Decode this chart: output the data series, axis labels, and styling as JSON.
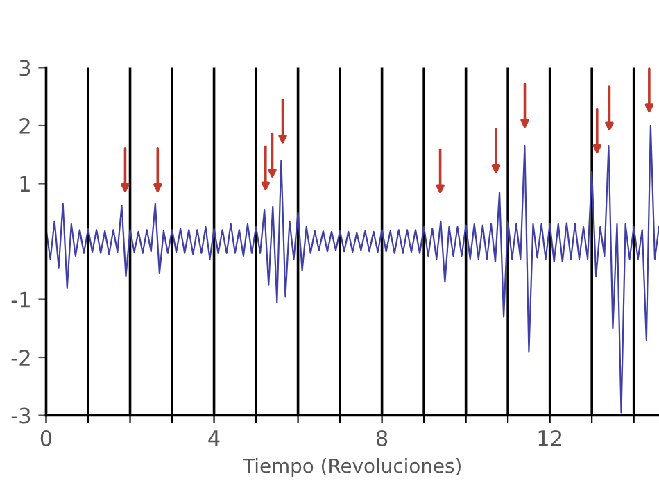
{
  "chart_data": {
    "type": "line",
    "xlabel": "Tiempo (Revoluciones)",
    "xlim": [
      0,
      14.6
    ],
    "ylim": [
      -3,
      3
    ],
    "xticks": [
      0,
      {
        "value": 1,
        "label": null
      },
      {
        "value": 2,
        "label": null
      },
      {
        "value": 3,
        "label": null
      },
      4,
      {
        "value": 5,
        "label": null
      },
      {
        "value": 6,
        "label": null
      },
      {
        "value": 7,
        "label": null
      },
      8,
      {
        "value": 9,
        "label": null
      },
      {
        "value": 10,
        "label": null
      },
      {
        "value": 11,
        "label": null
      },
      12,
      {
        "value": 13,
        "label": null
      },
      {
        "value": 14,
        "label": null
      }
    ],
    "yticks": [
      -3,
      -2,
      -1,
      1,
      2,
      3
    ],
    "grid": false,
    "legend": false,
    "marker": "none",
    "line_style": "solid",
    "ref_lines": [
      {
        "axis": "x",
        "value": 1,
        "color": "#000000"
      },
      {
        "axis": "x",
        "value": 2,
        "color": "#000000"
      },
      {
        "axis": "x",
        "value": 3,
        "color": "#000000"
      },
      {
        "axis": "x",
        "value": 4,
        "color": "#000000"
      },
      {
        "axis": "x",
        "value": 5,
        "color": "#000000"
      },
      {
        "axis": "x",
        "value": 6,
        "color": "#000000"
      },
      {
        "axis": "x",
        "value": 7,
        "color": "#000000"
      },
      {
        "axis": "x",
        "value": 8,
        "color": "#000000"
      },
      {
        "axis": "x",
        "value": 9,
        "color": "#000000"
      },
      {
        "axis": "x",
        "value": 10,
        "color": "#000000"
      },
      {
        "axis": "x",
        "value": 11,
        "color": "#000000"
      },
      {
        "axis": "x",
        "value": 12,
        "color": "#000000"
      },
      {
        "axis": "x",
        "value": 13,
        "color": "#000000"
      },
      {
        "axis": "x",
        "value": 14,
        "color": "#000000"
      }
    ],
    "series": [
      {
        "color": "#3f3fa6",
        "x": [
          0.0,
          0.1,
          0.2,
          0.3,
          0.4,
          0.5,
          0.6,
          0.7,
          0.8,
          0.9,
          1.0,
          1.1,
          1.2,
          1.3,
          1.4,
          1.5,
          1.6,
          1.7,
          1.8,
          1.9,
          2.0,
          2.1,
          2.2,
          2.3,
          2.4,
          2.5,
          2.6,
          2.7,
          2.8,
          2.9,
          3.0,
          3.1,
          3.2,
          3.3,
          3.4,
          3.5,
          3.6,
          3.7,
          3.8,
          3.9,
          4.0,
          4.1,
          4.2,
          4.3,
          4.4,
          4.5,
          4.6,
          4.7,
          4.8,
          4.9,
          5.0,
          5.1,
          5.2,
          5.3,
          5.4,
          5.5,
          5.6,
          5.7,
          5.8,
          5.9,
          6.0,
          6.1,
          6.2,
          6.3,
          6.4,
          6.5,
          6.6,
          6.7,
          6.8,
          6.9,
          7.0,
          7.1,
          7.2,
          7.3,
          7.4,
          7.5,
          7.6,
          7.7,
          7.8,
          7.9,
          8.0,
          8.1,
          8.2,
          8.3,
          8.4,
          8.5,
          8.6,
          8.7,
          8.8,
          8.9,
          9.0,
          9.1,
          9.2,
          9.3,
          9.4,
          9.5,
          9.6,
          9.7,
          9.8,
          9.9,
          10.0,
          10.1,
          10.2,
          10.3,
          10.4,
          10.5,
          10.6,
          10.7,
          10.8,
          10.9,
          11.0,
          11.1,
          11.2,
          11.3,
          11.4,
          11.5,
          11.6,
          11.7,
          11.8,
          11.9,
          12.0,
          12.1,
          12.2,
          12.3,
          12.4,
          12.5,
          12.6,
          12.7,
          12.8,
          12.9,
          13.0,
          13.1,
          13.2,
          13.3,
          13.4,
          13.5,
          13.6,
          13.7,
          13.8,
          13.9,
          14.0,
          14.1,
          14.2,
          14.3,
          14.4,
          14.5,
          14.6
        ],
        "values": [
          0.2,
          -0.3,
          0.35,
          -0.45,
          0.65,
          -0.8,
          0.3,
          -0.25,
          0.2,
          -0.2,
          0.22,
          -0.18,
          0.2,
          -0.2,
          0.18,
          -0.22,
          0.2,
          -0.18,
          0.62,
          -0.6,
          0.2,
          -0.18,
          0.17,
          -0.2,
          0.2,
          -0.17,
          0.65,
          -0.55,
          0.18,
          -0.2,
          0.2,
          -0.18,
          0.22,
          -0.2,
          0.2,
          -0.22,
          0.2,
          -0.2,
          0.25,
          -0.3,
          0.22,
          -0.2,
          0.2,
          -0.2,
          0.3,
          -0.2,
          0.2,
          -0.25,
          0.3,
          -0.2,
          0.25,
          -0.2,
          0.55,
          -0.75,
          0.6,
          -1.05,
          1.4,
          -0.95,
          0.35,
          -0.3,
          0.5,
          -0.5,
          0.25,
          -0.2,
          0.18,
          -0.15,
          0.18,
          -0.17,
          0.17,
          -0.15,
          0.18,
          -0.17,
          0.17,
          -0.18,
          0.15,
          -0.15,
          0.18,
          -0.17,
          0.17,
          -0.18,
          0.2,
          -0.17,
          0.18,
          -0.2,
          0.2,
          -0.2,
          0.2,
          -0.18,
          0.2,
          -0.2,
          0.25,
          -0.25,
          0.22,
          -0.3,
          0.35,
          -0.7,
          0.25,
          -0.25,
          0.25,
          -0.25,
          0.28,
          -0.3,
          0.3,
          -0.3,
          0.28,
          -0.3,
          0.3,
          -0.35,
          0.85,
          -1.3,
          0.35,
          -0.3,
          0.3,
          -0.3,
          1.65,
          -1.9,
          0.3,
          -0.28,
          0.3,
          -0.3,
          0.3,
          -0.35,
          0.3,
          -0.35,
          0.32,
          -0.3,
          0.3,
          -0.3,
          0.25,
          -0.3,
          1.2,
          -0.6,
          0.25,
          -0.25,
          1.65,
          -1.5,
          0.3,
          -2.95,
          0.3,
          -0.3,
          0.25,
          -0.3,
          0.2,
          -1.7,
          2.0,
          -0.3,
          0.25
        ]
      }
    ]
  }
}
